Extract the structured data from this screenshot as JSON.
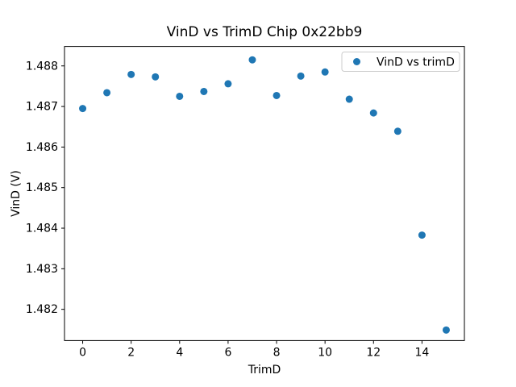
{
  "figure": {
    "background": "#ffffff"
  },
  "chart_data": {
    "type": "scatter",
    "title": "VinD vs TrimD Chip 0x22bb9",
    "xlabel": "TrimD",
    "ylabel": "VinD (V)",
    "grid": false,
    "legend": {
      "position": "upper right",
      "entries": [
        {
          "label": "VinD vs trimD",
          "marker": "circle",
          "color": "#1f77b4"
        }
      ]
    },
    "series": [
      {
        "name": "VinD vs trimD",
        "color": "#1f77b4",
        "x": [
          0,
          1,
          2,
          3,
          4,
          5,
          6,
          7,
          8,
          9,
          10,
          11,
          12,
          13,
          14,
          15
        ],
        "y": [
          1.48695,
          1.48734,
          1.48779,
          1.48773,
          1.48725,
          1.48737,
          1.48756,
          1.48815,
          1.48727,
          1.48775,
          1.48785,
          1.48718,
          1.48684,
          1.48639,
          1.48383,
          1.48149
        ]
      }
    ],
    "xlim": [
      -0.75,
      15.75
    ],
    "ylim": [
      1.48123,
      1.48848
    ],
    "xticks": {
      "values": [
        0,
        2,
        4,
        6,
        8,
        10,
        12,
        14
      ],
      "labels": [
        "0",
        "2",
        "4",
        "6",
        "8",
        "10",
        "12",
        "14"
      ]
    },
    "yticks": {
      "values": [
        1.482,
        1.483,
        1.484,
        1.485,
        1.486,
        1.487,
        1.488
      ],
      "labels": [
        "1.482",
        "1.483",
        "1.484",
        "1.485",
        "1.486",
        "1.487",
        "1.488"
      ]
    }
  },
  "colors": {
    "spine": "#000000",
    "tick": "#000000",
    "text": "#000000",
    "legend_border": "#cccccc",
    "legend_fill": "#ffffff",
    "axes_background": "#ffffff"
  }
}
